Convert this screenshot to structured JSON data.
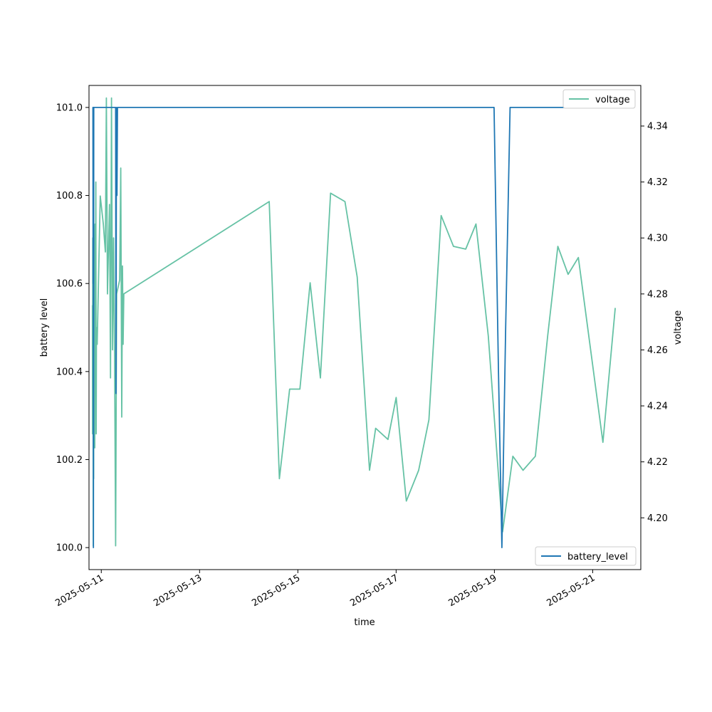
{
  "chart_data": {
    "type": "line",
    "xlabel": "time",
    "ylabel_left": "battery level",
    "ylabel_right": "voltage",
    "x_ticks": [
      "2025-05-11",
      "2025-05-13",
      "2025-05-15",
      "2025-05-17",
      "2025-05-19",
      "2025-05-21"
    ],
    "y_left_ticks": [
      "100.0",
      "100.2",
      "100.4",
      "100.6",
      "100.8",
      "101.0"
    ],
    "y_right_ticks": [
      "4.20",
      "4.22",
      "4.24",
      "4.26",
      "4.28",
      "4.30",
      "4.32",
      "4.34"
    ],
    "xlim": [
      "2025-05-10T18:00",
      "2025-05-21T23:30"
    ],
    "ylim_left": [
      99.95,
      101.05
    ],
    "ylim_right": [
      4.1815,
      4.3545
    ],
    "grid": false,
    "legend_right": {
      "label": "voltage",
      "position": "upper right"
    },
    "legend_left": {
      "label": "battery_level",
      "position": "lower right"
    },
    "colors": {
      "battery_level": "#1f77b4",
      "voltage": "#66c2a5"
    },
    "series": [
      {
        "name": "battery_level",
        "axis": "left",
        "points": [
          [
            "2025-05-10T19:40",
            101.0
          ],
          [
            "2025-05-10T19:55",
            101.0
          ],
          [
            "2025-05-10T20:00",
            100.6
          ],
          [
            "2025-05-10T20:05",
            101.0
          ],
          [
            "2025-05-10T20:10",
            100.0
          ],
          [
            "2025-05-10T20:20",
            101.0
          ],
          [
            "2025-05-11T07:00",
            101.0
          ],
          [
            "2025-05-11T07:10",
            100.35
          ],
          [
            "2025-05-11T07:25",
            101.0
          ],
          [
            "2025-05-11T07:40",
            100.8
          ],
          [
            "2025-05-11T07:55",
            101.0
          ],
          [
            "2025-05-18T23:50",
            101.0
          ],
          [
            "2025-05-19T02:00",
            100.4
          ],
          [
            "2025-05-19T03:40",
            100.0
          ],
          [
            "2025-05-19T05:30",
            100.5
          ],
          [
            "2025-05-19T07:40",
            101.0
          ],
          [
            "2025-05-21T09:00",
            101.0
          ]
        ]
      },
      {
        "name": "voltage",
        "axis": "right",
        "points": [
          [
            "2025-05-10T19:40",
            4.276
          ],
          [
            "2025-05-10T19:45",
            4.23
          ],
          [
            "2025-05-10T19:50",
            4.3
          ],
          [
            "2025-05-10T20:00",
            4.235
          ],
          [
            "2025-05-10T20:05",
            4.19
          ],
          [
            "2025-05-10T20:10",
            4.305
          ],
          [
            "2025-05-10T20:15",
            4.214
          ],
          [
            "2025-05-10T20:20",
            4.305
          ],
          [
            "2025-05-10T20:30",
            4.245
          ],
          [
            "2025-05-10T20:40",
            4.3
          ],
          [
            "2025-05-10T20:50",
            4.225
          ],
          [
            "2025-05-10T21:00",
            4.305
          ],
          [
            "2025-05-10T21:10",
            4.245
          ],
          [
            "2025-05-10T21:20",
            4.32
          ],
          [
            "2025-05-10T21:30",
            4.23
          ],
          [
            "2025-05-10T21:40",
            4.268
          ],
          [
            "2025-05-10T21:50",
            4.262
          ],
          [
            "2025-05-10T22:00",
            4.262
          ],
          [
            "2025-05-10T23:30",
            4.315
          ],
          [
            "2025-05-11T01:00",
            4.305
          ],
          [
            "2025-05-11T02:00",
            4.295
          ],
          [
            "2025-05-11T02:30",
            4.35
          ],
          [
            "2025-05-11T03:00",
            4.28
          ],
          [
            "2025-05-11T04:00",
            4.312
          ],
          [
            "2025-05-11T04:30",
            4.25
          ],
          [
            "2025-05-11T05:00",
            4.35
          ],
          [
            "2025-05-11T05:30",
            4.26
          ],
          [
            "2025-05-11T06:00",
            4.3
          ],
          [
            "2025-05-11T06:30",
            4.26
          ],
          [
            "2025-05-11T07:00",
            4.19
          ],
          [
            "2025-05-11T07:30",
            4.28
          ],
          [
            "2025-05-11T09:00",
            4.285
          ],
          [
            "2025-05-11T09:30",
            4.325
          ],
          [
            "2025-05-11T10:00",
            4.236
          ],
          [
            "2025-05-11T10:20",
            4.29
          ],
          [
            "2025-05-11T10:40",
            4.262
          ],
          [
            "2025-05-11T11:00",
            4.28
          ],
          [
            "2025-05-14T10:00",
            4.313
          ],
          [
            "2025-05-14T15:00",
            4.214
          ],
          [
            "2025-05-14T20:00",
            4.246
          ],
          [
            "2025-05-15T01:00",
            4.246
          ],
          [
            "2025-05-15T06:00",
            4.284
          ],
          [
            "2025-05-15T11:00",
            4.25
          ],
          [
            "2025-05-15T16:00",
            4.316
          ],
          [
            "2025-05-15T23:00",
            4.313
          ],
          [
            "2025-05-16T05:00",
            4.286
          ],
          [
            "2025-05-16T11:00",
            4.217
          ],
          [
            "2025-05-16T14:00",
            4.232
          ],
          [
            "2025-05-16T20:00",
            4.228
          ],
          [
            "2025-05-17T00:00",
            4.243
          ],
          [
            "2025-05-17T05:00",
            4.206
          ],
          [
            "2025-05-17T11:00",
            4.217
          ],
          [
            "2025-05-17T16:00",
            4.235
          ],
          [
            "2025-05-17T22:00",
            4.308
          ],
          [
            "2025-05-18T04:00",
            4.297
          ],
          [
            "2025-05-18T10:00",
            4.296
          ],
          [
            "2025-05-18T15:00",
            4.305
          ],
          [
            "2025-05-18T21:00",
            4.265
          ],
          [
            "2025-05-19T04:00",
            4.195
          ],
          [
            "2025-05-19T09:00",
            4.222
          ],
          [
            "2025-05-19T14:00",
            4.217
          ],
          [
            "2025-05-19T20:00",
            4.222
          ],
          [
            "2025-05-20T02:00",
            4.265
          ],
          [
            "2025-05-20T07:00",
            4.297
          ],
          [
            "2025-05-20T12:00",
            4.287
          ],
          [
            "2025-05-20T17:00",
            4.293
          ],
          [
            "2025-05-21T05:00",
            4.227
          ],
          [
            "2025-05-21T11:00",
            4.275
          ]
        ]
      }
    ]
  }
}
